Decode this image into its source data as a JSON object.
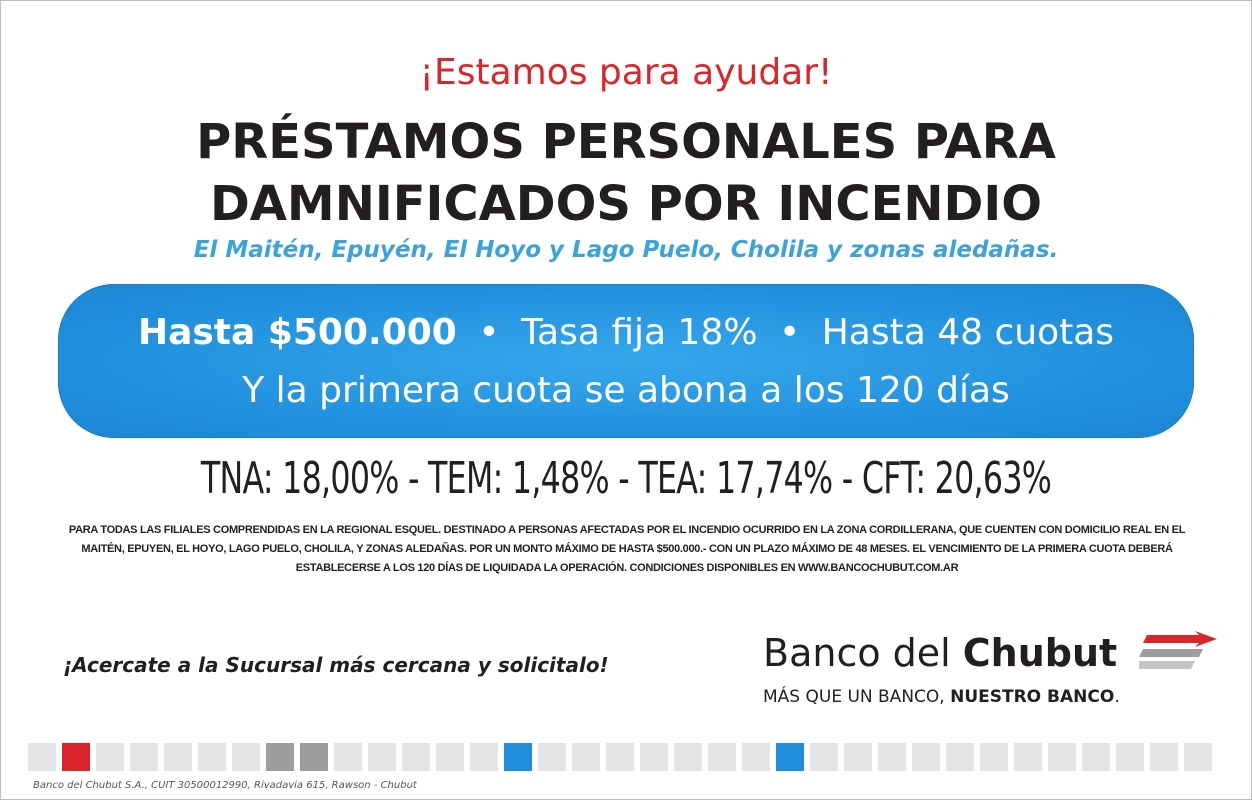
{
  "tagline": "¡Estamos para ayudar!",
  "headline": {
    "line1": "PRÉSTAMOS PERSONALES PARA",
    "line2": "DAMNIFICADOS POR INCENDIO"
  },
  "towns": "El Maitén, Epuyén, El Hoyo y Lago Puelo, Cholila y zonas aledañas.",
  "offer": {
    "amount": "Hasta $500.000",
    "bullet": "•",
    "rate": "Tasa fija 18%",
    "installments": "Hasta 48 cuotas",
    "first_payment": "Y la primera cuota se abona a los 120 días"
  },
  "rates": "TNA: 18,00%  - TEM: 1,48% - TEA: 17,74% - CFT: 20,63%",
  "legal": "PARA TODAS LAS FILIALES COMPRENDIDAS EN LA REGIONAL ESQUEL. DESTINADO A PERSONAS AFECTADAS POR EL INCENDIO OCURRIDO EN LA ZONA CORDILLERANA, QUE CUENTEN CON DOMICILIO REAL EN EL MAITÉN, EPUYEN, EL HOYO, LAGO PUELO, CHOLILA, Y ZONAS ALEDAÑAS. POR UN MONTO MÁXIMO DE HASTA $500.000.- CON UN PLAZO MÁXIMO DE 48 MESES. EL VENCIMIENTO DE LA PRIMERA CUOTA DEBERÁ ESTABLECERSE A LOS 120 DÍAS DE LIQUIDADA LA OPERACIÓN. CONDICIONES DISPONIBLES EN WWW.BANCOCHUBUT.COM.AR",
  "cta": "¡Acercate a la Sucursal más cercana y solicitalo!",
  "logo": {
    "name_regular": "Banco del ",
    "name_bold": "Chubut",
    "slogan_regular": "MÁS QUE UN BANCO, ",
    "slogan_bold": "NUESTRO BANCO",
    "slogan_end": "."
  },
  "footer": "Banco del Chubut S.A., CUIT 30500012990, Rivadavia 615, Rawson - Chubut",
  "colors": {
    "red": "#d9262b",
    "blue": "#1f8fdc",
    "light_blue": "#3aa3dd",
    "gray_light": "#e4e5e7",
    "gray_dark": "#9d9d9f",
    "text": "#231f20"
  },
  "square_strip": [
    "light",
    "red",
    "light",
    "light",
    "light",
    "light",
    "light",
    "dark",
    "dark",
    "light",
    "light",
    "light",
    "light",
    "light",
    "blue",
    "light",
    "light",
    "light",
    "light",
    "light",
    "light",
    "light",
    "blue",
    "light",
    "light",
    "light",
    "light",
    "light",
    "light",
    "light",
    "light",
    "light",
    "light",
    "light",
    "light",
    "light",
    "red",
    "light",
    "light",
    "dark",
    "dark",
    "light",
    "light",
    "light",
    "light",
    "light",
    "light",
    "light",
    "red",
    "light",
    "dark"
  ]
}
